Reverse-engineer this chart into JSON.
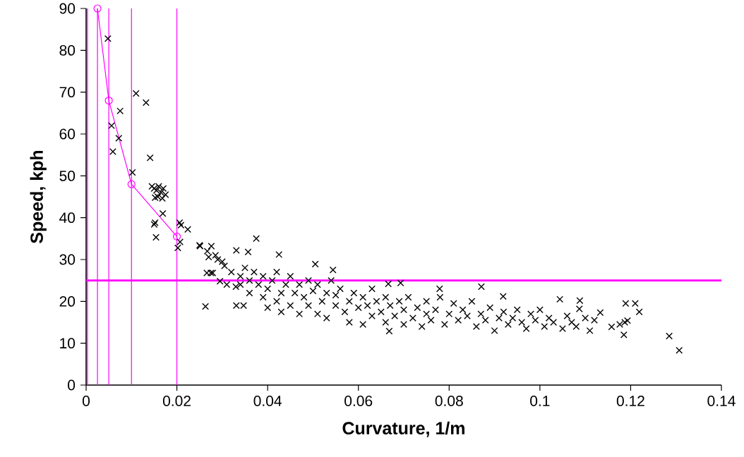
{
  "chart_data": {
    "type": "scatter",
    "xlabel": "Curvature, 1/m",
    "ylabel": "Speed, kph",
    "xlim": [
      0,
      0.14
    ],
    "ylim": [
      0,
      90
    ],
    "xticks": [
      0,
      0.02,
      0.04,
      0.06,
      0.08,
      0.1,
      0.12,
      0.14
    ],
    "yticks": [
      0,
      10,
      20,
      30,
      40,
      50,
      60,
      70,
      80,
      90
    ],
    "grid": false,
    "ref_lines": [
      {
        "axis": "x",
        "value": 0.0003,
        "color": "#ff00ff"
      },
      {
        "axis": "x",
        "value": 0.0025,
        "color": "#ff00ff"
      },
      {
        "axis": "x",
        "value": 0.005,
        "color": "#ff00ff"
      },
      {
        "axis": "x",
        "value": 0.01,
        "color": "#ff00ff"
      },
      {
        "axis": "x",
        "value": 0.02,
        "color": "#ff00ff"
      },
      {
        "axis": "y",
        "value": 25,
        "color": "#ff00ff"
      }
    ],
    "series": [
      {
        "color": "#000000",
        "marker": "cross",
        "x": [
          0.0048,
          0.011,
          0.0132,
          0.0075,
          0.0056,
          0.0072,
          0.0059,
          0.0141,
          0.0102,
          0.0145,
          0.015,
          0.0155,
          0.016,
          0.0165,
          0.017,
          0.0175,
          0.0158,
          0.0168,
          0.0152,
          0.0169,
          0.015,
          0.0152,
          0.0154,
          0.0206,
          0.0209,
          0.0224,
          0.0207,
          0.0202,
          0.025,
          0.0267,
          0.027,
          0.0266,
          0.0275,
          0.0263,
          0.0375,
          0.0251,
          0.0276,
          0.0331,
          0.0357,
          0.0425,
          0.0505,
          0.0544,
          0.0331,
          0.0347,
          0.0279,
          0.0295,
          0.0285,
          0.029,
          0.03,
          0.0305,
          0.031,
          0.032,
          0.033,
          0.034,
          0.034,
          0.035,
          0.036,
          0.036,
          0.037,
          0.038,
          0.039,
          0.039,
          0.04,
          0.04,
          0.041,
          0.042,
          0.042,
          0.043,
          0.043,
          0.044,
          0.045,
          0.045,
          0.046,
          0.047,
          0.047,
          0.048,
          0.049,
          0.049,
          0.05,
          0.051,
          0.051,
          0.052,
          0.053,
          0.053,
          0.054,
          0.055,
          0.055,
          0.056,
          0.057,
          0.058,
          0.058,
          0.059,
          0.06,
          0.061,
          0.061,
          0.062,
          0.063,
          0.063,
          0.064,
          0.065,
          0.066,
          0.066,
          0.067,
          0.068,
          0.069,
          0.07,
          0.07,
          0.071,
          0.072,
          0.073,
          0.074,
          0.075,
          0.075,
          0.076,
          0.077,
          0.078,
          0.079,
          0.08,
          0.081,
          0.082,
          0.083,
          0.084,
          0.085,
          0.086,
          0.087,
          0.088,
          0.089,
          0.09,
          0.091,
          0.092,
          0.093,
          0.094,
          0.095,
          0.096,
          0.097,
          0.098,
          0.099,
          0.1,
          0.101,
          0.102,
          0.103,
          0.105,
          0.106,
          0.107,
          0.108,
          0.11,
          0.111,
          0.112,
          0.0666,
          0.0693,
          0.0779,
          0.0871,
          0.0919,
          0.0668,
          0.1044,
          0.1088,
          0.1087,
          0.1133,
          0.1189,
          0.121,
          0.1219,
          0.1158,
          0.1176,
          0.1187,
          0.1193,
          0.1185,
          0.1285,
          0.1307
        ],
        "values": [
          82.8,
          69.7,
          67.5,
          65.5,
          62,
          59,
          55.8,
          54.3,
          50.8,
          47.5,
          47,
          46.5,
          47.5,
          46,
          47,
          45.5,
          45,
          44.6,
          44.8,
          41,
          38.4,
          38.8,
          35.3,
          38.8,
          38.2,
          37.2,
          34.2,
          32.8,
          33.4,
          32,
          30.6,
          26.8,
          26.8,
          18.8,
          35,
          33.2,
          33.2,
          32.2,
          31.8,
          31.2,
          28.9,
          27.5,
          19,
          19,
          26.8,
          24.8,
          31,
          30,
          29.5,
          28.5,
          24,
          27,
          23.5,
          26,
          24,
          28,
          25,
          22,
          27,
          24,
          21,
          26,
          18.5,
          23,
          25,
          20,
          27,
          22,
          17.5,
          24,
          26,
          19,
          22,
          24,
          17,
          21,
          25,
          19,
          22.5,
          17,
          24,
          20,
          22,
          16,
          25,
          19,
          21.5,
          23,
          17.5,
          20,
          15,
          22,
          18.5,
          21,
          14.5,
          19,
          23,
          16.5,
          20,
          17.5,
          21,
          15,
          19,
          16.5,
          20,
          14.5,
          18,
          21,
          16,
          18.5,
          14,
          17,
          20,
          15.5,
          18,
          21,
          14.5,
          17,
          19.5,
          15.5,
          18,
          16.5,
          20,
          14,
          17,
          15.5,
          18.5,
          13,
          16,
          17.5,
          14.5,
          16,
          18,
          15,
          13.5,
          17,
          15.5,
          18,
          14,
          16,
          15,
          13.5,
          16.5,
          15,
          14,
          16,
          13,
          15.5,
          24.2,
          24.4,
          23,
          23.5,
          21.2,
          12.9,
          20.5,
          20.2,
          18.2,
          17.3,
          19.5,
          19.5,
          17.5,
          13.9,
          14.5,
          15,
          15.4,
          12,
          11.7,
          8.3
        ]
      },
      {
        "type": "line",
        "color": "#ff00ff",
        "marker": "circle",
        "x": [
          0.0025,
          0.005,
          0.01,
          0.02
        ],
        "values": [
          90,
          68,
          48,
          35.5
        ]
      }
    ]
  }
}
